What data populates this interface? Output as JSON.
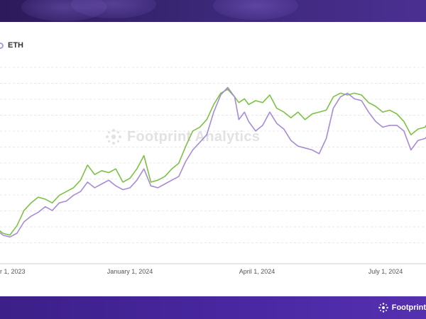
{
  "legend": {
    "series_label": "ETH"
  },
  "watermark": {
    "text": "Footprint Analytics"
  },
  "footer": {
    "brand": "Footprint"
  },
  "colors": {
    "eth": "#a78bd6",
    "comparison": "#7cc243",
    "grid": "#e8e8e8",
    "axis": "#cfcfcf",
    "header": "#3a2775",
    "footer": "#4a28a3"
  },
  "chart_data": {
    "type": "line",
    "title": "",
    "xlabel": "",
    "ylabel": "",
    "x_ticks": [
      "r 1, 2023",
      "January 1, 2024",
      "April 1, 2024",
      "July 1, 2024"
    ],
    "x_range_days": [
      -100,
      230
    ],
    "y_range": [
      0,
      100
    ],
    "grid": true,
    "legend_position": "top-left",
    "series": [
      {
        "name": "ETH",
        "color": "#a78bd6",
        "x": [
          -100,
          -95,
          -90,
          -85,
          -80,
          -75,
          -70,
          -65,
          -60,
          -55,
          -50,
          -45,
          -40,
          -35,
          -30,
          -25,
          -20,
          -15,
          -10,
          -5,
          0,
          5,
          10,
          15,
          20,
          25,
          30,
          35,
          40,
          45,
          50,
          55,
          60,
          65,
          70,
          75,
          78,
          82,
          85,
          90,
          95,
          100,
          105,
          110,
          115,
          120,
          125,
          130,
          135,
          140,
          145,
          150,
          155,
          160,
          165,
          170,
          175,
          180,
          185,
          190,
          195,
          200,
          205,
          210,
          215,
          220,
          225,
          230
        ],
        "values": [
          10,
          8,
          5,
          4,
          6,
          12,
          15,
          17,
          20,
          18,
          22,
          23,
          26,
          28,
          33,
          30,
          32,
          34,
          31,
          29,
          30,
          34,
          40,
          31,
          30,
          32,
          34,
          36,
          44,
          50,
          54,
          58,
          70,
          79,
          83,
          78,
          66,
          70,
          65,
          60,
          63,
          70,
          64,
          61,
          55,
          52,
          51,
          50,
          48,
          56,
          72,
          78,
          80,
          77,
          76,
          70,
          65,
          62,
          63,
          63,
          60,
          50,
          55,
          56,
          60,
          63,
          64,
          62
        ]
      },
      {
        "name": "",
        "color": "#7cc243",
        "x": [
          -100,
          -95,
          -90,
          -85,
          -80,
          -75,
          -70,
          -65,
          -60,
          -55,
          -50,
          -45,
          -40,
          -35,
          -30,
          -25,
          -20,
          -15,
          -10,
          -5,
          0,
          5,
          10,
          15,
          20,
          25,
          30,
          35,
          40,
          45,
          50,
          55,
          60,
          65,
          70,
          75,
          78,
          82,
          85,
          90,
          95,
          100,
          105,
          110,
          115,
          120,
          125,
          130,
          135,
          140,
          145,
          150,
          155,
          160,
          165,
          170,
          175,
          180,
          185,
          190,
          195,
          200,
          205,
          210,
          215,
          220,
          225,
          230
        ],
        "values": [
          12,
          9,
          6,
          5,
          10,
          18,
          22,
          25,
          24,
          22,
          26,
          28,
          30,
          34,
          42,
          37,
          39,
          38,
          40,
          33,
          35,
          40,
          47,
          33,
          34,
          36,
          40,
          43,
          52,
          60,
          62,
          66,
          74,
          80,
          82,
          78,
          75,
          77,
          74,
          76,
          75,
          79,
          72,
          70,
          67,
          70,
          66,
          69,
          70,
          71,
          78,
          80,
          79,
          80,
          79,
          75,
          73,
          70,
          71,
          69,
          65,
          58,
          61,
          62,
          68,
          72,
          74,
          70
        ]
      }
    ]
  }
}
